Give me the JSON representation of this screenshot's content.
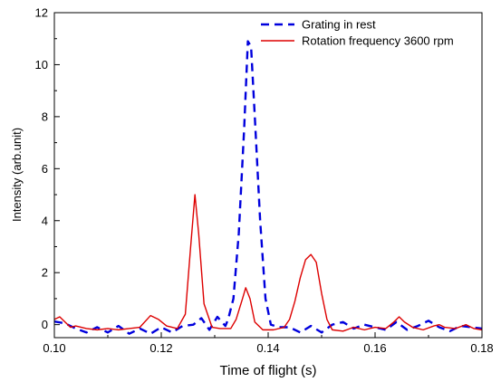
{
  "chart_data": {
    "type": "line",
    "xlabel": "Time of flight (s)",
    "ylabel": "Intensity  (arb.unit)",
    "xlim": [
      0.1,
      0.18
    ],
    "ylim": [
      -0.5,
      12
    ],
    "xticks": [
      0.1,
      0.12,
      0.14,
      0.16,
      0.18
    ],
    "xtick_labels": [
      "0.10",
      "0.12",
      "0.14",
      "0.16",
      "0.18"
    ],
    "yticks": [
      0,
      2,
      4,
      6,
      8,
      10,
      12
    ],
    "ytick_labels": [
      "0",
      "2",
      "4",
      "6",
      "8",
      "10",
      "12"
    ],
    "grid": false,
    "legend_position": "top-right",
    "series": [
      {
        "name": "Grating in rest",
        "color": "#0000dd",
        "style": "dashed",
        "points": [
          [
            0.1,
            0.12
          ],
          [
            0.102,
            0.05
          ],
          [
            0.104,
            -0.15
          ],
          [
            0.106,
            -0.3
          ],
          [
            0.108,
            -0.1
          ],
          [
            0.11,
            -0.3
          ],
          [
            0.112,
            -0.05
          ],
          [
            0.114,
            -0.35
          ],
          [
            0.116,
            -0.15
          ],
          [
            0.118,
            -0.35
          ],
          [
            0.12,
            -0.1
          ],
          [
            0.122,
            -0.3
          ],
          [
            0.124,
            -0.05
          ],
          [
            0.126,
            0.0
          ],
          [
            0.1275,
            0.25
          ],
          [
            0.129,
            -0.2
          ],
          [
            0.1305,
            0.3
          ],
          [
            0.132,
            -0.05
          ],
          [
            0.1325,
            0.2
          ],
          [
            0.1335,
            1.0
          ],
          [
            0.1345,
            3.5
          ],
          [
            0.1355,
            7.5
          ],
          [
            0.1362,
            10.9
          ],
          [
            0.1368,
            10.7
          ],
          [
            0.1375,
            8.0
          ],
          [
            0.1385,
            4.0
          ],
          [
            0.1395,
            1.0
          ],
          [
            0.1405,
            0.0
          ],
          [
            0.142,
            -0.1
          ],
          [
            0.144,
            -0.1
          ],
          [
            0.146,
            -0.3
          ],
          [
            0.148,
            -0.05
          ],
          [
            0.15,
            -0.3
          ],
          [
            0.152,
            0.0
          ],
          [
            0.154,
            0.1
          ],
          [
            0.156,
            -0.15
          ],
          [
            0.158,
            0.0
          ],
          [
            0.16,
            -0.1
          ],
          [
            0.162,
            -0.2
          ],
          [
            0.164,
            0.1
          ],
          [
            0.166,
            -0.2
          ],
          [
            0.168,
            -0.05
          ],
          [
            0.17,
            0.15
          ],
          [
            0.172,
            -0.1
          ],
          [
            0.174,
            -0.25
          ],
          [
            0.176,
            -0.05
          ],
          [
            0.178,
            -0.1
          ],
          [
            0.18,
            -0.15
          ]
        ]
      },
      {
        "name": "Rotation frequency 3600 rpm",
        "color": "#dd0000",
        "style": "solid",
        "points": [
          [
            0.1,
            0.2
          ],
          [
            0.101,
            0.3
          ],
          [
            0.102,
            0.1
          ],
          [
            0.103,
            -0.1
          ],
          [
            0.104,
            -0.05
          ],
          [
            0.106,
            -0.15
          ],
          [
            0.108,
            -0.2
          ],
          [
            0.11,
            -0.15
          ],
          [
            0.112,
            -0.2
          ],
          [
            0.114,
            -0.15
          ],
          [
            0.116,
            -0.1
          ],
          [
            0.118,
            0.35
          ],
          [
            0.1195,
            0.2
          ],
          [
            0.121,
            -0.05
          ],
          [
            0.123,
            -0.15
          ],
          [
            0.1245,
            0.4
          ],
          [
            0.1255,
            3.0
          ],
          [
            0.1263,
            5.0
          ],
          [
            0.127,
            3.5
          ],
          [
            0.128,
            0.8
          ],
          [
            0.1295,
            -0.1
          ],
          [
            0.131,
            -0.15
          ],
          [
            0.133,
            -0.15
          ],
          [
            0.134,
            0.2
          ],
          [
            0.1352,
            1.0
          ],
          [
            0.1358,
            1.42
          ],
          [
            0.1366,
            1.0
          ],
          [
            0.1375,
            0.1
          ],
          [
            0.139,
            -0.2
          ],
          [
            0.141,
            -0.2
          ],
          [
            0.143,
            -0.1
          ],
          [
            0.144,
            0.2
          ],
          [
            0.145,
            0.9
          ],
          [
            0.146,
            1.8
          ],
          [
            0.147,
            2.5
          ],
          [
            0.148,
            2.7
          ],
          [
            0.149,
            2.4
          ],
          [
            0.15,
            1.2
          ],
          [
            0.151,
            0.2
          ],
          [
            0.152,
            -0.2
          ],
          [
            0.154,
            -0.25
          ],
          [
            0.156,
            -0.1
          ],
          [
            0.158,
            -0.2
          ],
          [
            0.16,
            -0.1
          ],
          [
            0.162,
            -0.15
          ],
          [
            0.1635,
            0.1
          ],
          [
            0.1645,
            0.3
          ],
          [
            0.1655,
            0.1
          ],
          [
            0.167,
            -0.1
          ],
          [
            0.169,
            -0.2
          ],
          [
            0.171,
            -0.05
          ],
          [
            0.172,
            0.0
          ],
          [
            0.173,
            -0.1
          ],
          [
            0.175,
            -0.15
          ],
          [
            0.177,
            0.0
          ],
          [
            0.1785,
            -0.15
          ],
          [
            0.18,
            -0.2
          ]
        ]
      }
    ]
  }
}
